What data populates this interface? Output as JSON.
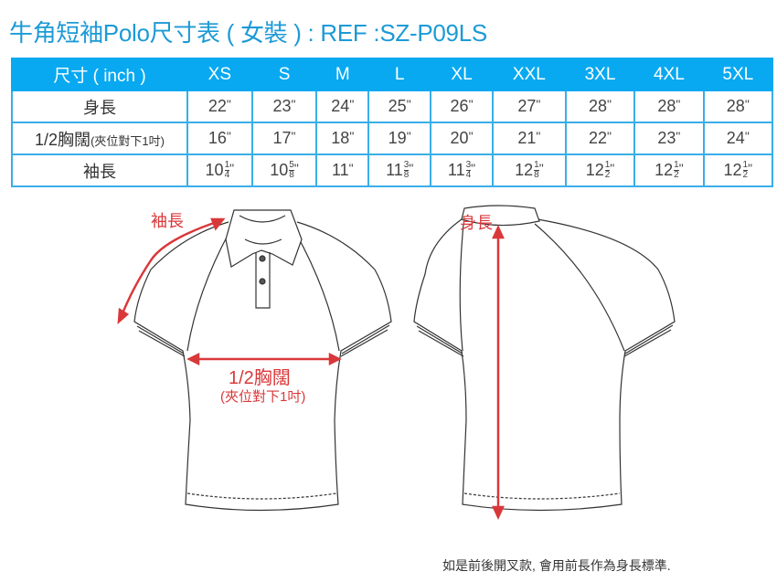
{
  "title": "牛角短袖Polo尺寸表 ( 女裝 ) : REF :SZ-P09LS",
  "table": {
    "header_label": "尺寸 ( inch )",
    "sizes": [
      "XS",
      "S",
      "M",
      "L",
      "XL",
      "XXL",
      "3XL",
      "4XL",
      "5XL"
    ],
    "rows": [
      {
        "label": "身長",
        "label_note": "",
        "values": [
          {
            "w": "22"
          },
          {
            "w": "23"
          },
          {
            "w": "24"
          },
          {
            "w": "25"
          },
          {
            "w": "26"
          },
          {
            "w": "27"
          },
          {
            "w": "28"
          },
          {
            "w": "28"
          },
          {
            "w": "28"
          }
        ]
      },
      {
        "label": "1/2胸闊",
        "label_note": "(夾位對下1吋)",
        "values": [
          {
            "w": "16"
          },
          {
            "w": "17"
          },
          {
            "w": "18"
          },
          {
            "w": "19"
          },
          {
            "w": "20"
          },
          {
            "w": "21"
          },
          {
            "w": "22"
          },
          {
            "w": "23"
          },
          {
            "w": "24"
          }
        ]
      },
      {
        "label": "袖長",
        "label_note": "",
        "values": [
          {
            "w": "10",
            "n": "1",
            "d": "4"
          },
          {
            "w": "10",
            "n": "5",
            "d": "8"
          },
          {
            "w": "11"
          },
          {
            "w": "11",
            "n": "3",
            "d": "8"
          },
          {
            "w": "11",
            "n": "3",
            "d": "4"
          },
          {
            "w": "12",
            "n": "1",
            "d": "8"
          },
          {
            "w": "12",
            "n": "1",
            "d": "2"
          },
          {
            "w": "12",
            "n": "1",
            "d": "2"
          },
          {
            "w": "12",
            "n": "1",
            "d": "2"
          }
        ]
      }
    ],
    "unit_mark": "\""
  },
  "diagram": {
    "sleeve_label": "袖長",
    "chest_label": "1/2胸闊",
    "chest_note": "(夾位對下1吋)",
    "length_label": "身長"
  },
  "footnote": "如是前後開叉款, 會用前長作為身長標準.",
  "colors": {
    "accent": "#08a9f1",
    "title": "#1c9ad6",
    "measure": "#d9383a"
  }
}
